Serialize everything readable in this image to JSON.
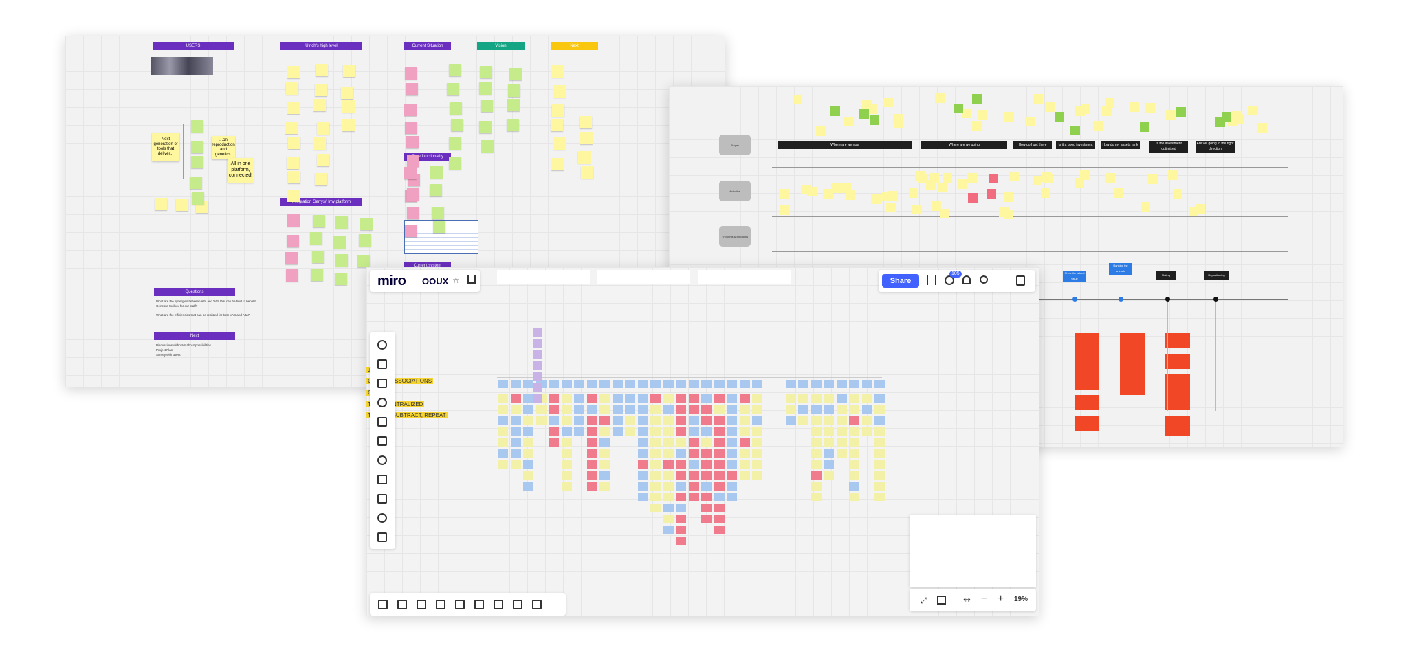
{
  "left_board": {
    "headers": [
      "USERS",
      "Ulrich's high level",
      "Current Situation",
      "Vision",
      "Next",
      "Integration Gerrys/Hmy platform",
      "Core functionality",
      "Current system"
    ],
    "stickies": [
      "Next generation of tools that deliver...",
      "...on reproduction and genetics.",
      "All in one platform, connected!"
    ],
    "questions": {
      "title": "Questions",
      "items": [
        "What are the synergies between Alta and VAS that can be built to benefit Genesus toolbox for our staff?",
        "What are the efficiencies that can be realized for both VAS and Alta?"
      ]
    },
    "next": {
      "title": "Next",
      "items": [
        "Discussions with VAS about possibilities",
        "Project Plan",
        "Survey with users"
      ]
    }
  },
  "right_board": {
    "lanes": [
      "Stages",
      "Activities",
      "Thoughts & Emotions"
    ],
    "stages": [
      "Where are we now",
      "Where are we going",
      "How do I get there",
      "Is it a good investment",
      "How do my assets rank",
      "Is the investment optimized",
      "Are we going in the right direction"
    ],
    "steps": [
      "Show the added value",
      "Ranking the animals",
      "Mating",
      "Repositioning"
    ]
  },
  "front_board": {
    "logo": "miro",
    "board_name": "OOUX",
    "share": "Share",
    "badge": "105",
    "zoom": "19%",
    "highlights": [
      "JECT",
      "CREATE ASSOCIATIONS",
      "CT",
      "THEM CENTRALIZED",
      "TE, ADD, SUBTRACT, REPEAT"
    ]
  }
}
